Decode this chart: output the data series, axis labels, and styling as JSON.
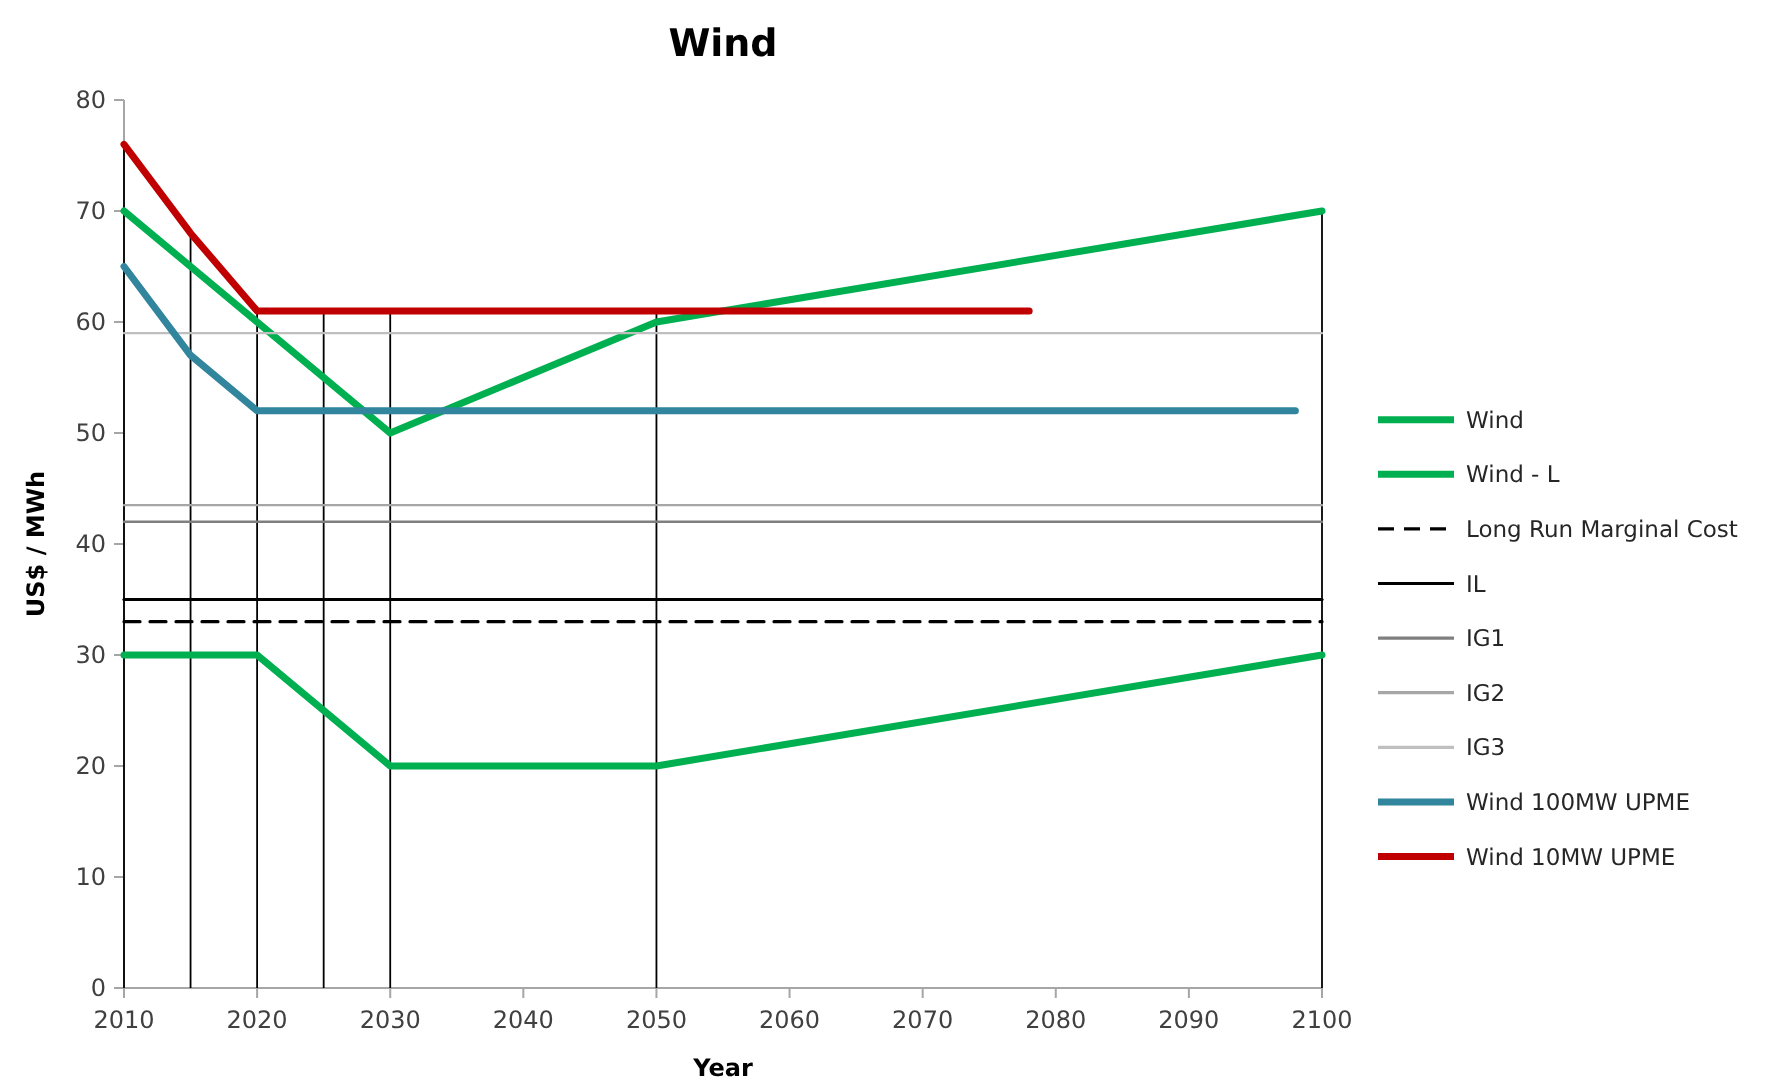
{
  "chart_data": {
    "type": "line",
    "title": "Wind",
    "xlabel": "Year",
    "ylabel": "US$ / MWh",
    "xlim": [
      2010,
      2100
    ],
    "xticks": [
      2010,
      2020,
      2030,
      2040,
      2050,
      2060,
      2070,
      2080,
      2090,
      2100
    ],
    "ylim": [
      0,
      80
    ],
    "yticks": [
      0,
      10,
      20,
      30,
      40,
      50,
      60,
      70,
      80
    ],
    "grid": false,
    "legend": "right",
    "series": [
      {
        "name": "Wind",
        "color": "#00b050",
        "x": [
          2010,
          2020,
          2030,
          2050,
          2100
        ],
        "values": [
          70,
          60,
          50,
          60,
          70
        ]
      },
      {
        "name": "Wind - L",
        "color": "#00b050",
        "x": [
          2010,
          2020,
          2030,
          2050,
          2100
        ],
        "values": [
          30,
          30,
          20,
          20,
          30
        ]
      },
      {
        "name": "Long Run Marginal Cost",
        "color": "#000000",
        "line_style": "dashed",
        "x": [
          2010,
          2100
        ],
        "values": [
          33,
          33
        ]
      },
      {
        "name": "IL",
        "color": "#000000",
        "x": [
          2010,
          2100
        ],
        "values": [
          35,
          35
        ]
      },
      {
        "name": "IG1",
        "color": "#7f7f7f",
        "x": [
          2010,
          2100
        ],
        "values": [
          42,
          42
        ]
      },
      {
        "name": "IG2",
        "color": "#a6a6a6",
        "x": [
          2010,
          2100
        ],
        "values": [
          43.5,
          43.5
        ]
      },
      {
        "name": "IG3",
        "color": "#bfbfbf",
        "x": [
          2010,
          2100
        ],
        "values": [
          59,
          59
        ]
      },
      {
        "name": "Wind 100MW UPME",
        "color": "#31859c",
        "x": [
          2010,
          2015,
          2020,
          2098
        ],
        "values": [
          65,
          57,
          52,
          52
        ]
      },
      {
        "name": "Wind 10MW UPME",
        "color": "#c00000",
        "x": [
          2010,
          2015,
          2020,
          2078
        ],
        "values": [
          76,
          68,
          61,
          61
        ]
      }
    ],
    "ref_lines": [
      {
        "axis": "x",
        "value": 2010,
        "color": "#000000"
      },
      {
        "axis": "x",
        "value": 2015,
        "color": "#000000"
      },
      {
        "axis": "x",
        "value": 2020,
        "color": "#000000"
      },
      {
        "axis": "x",
        "value": 2025,
        "color": "#000000"
      },
      {
        "axis": "x",
        "value": 2030,
        "color": "#000000"
      },
      {
        "axis": "x",
        "value": 2050,
        "color": "#000000"
      },
      {
        "axis": "x",
        "value": 2100,
        "color": "#000000"
      }
    ]
  }
}
